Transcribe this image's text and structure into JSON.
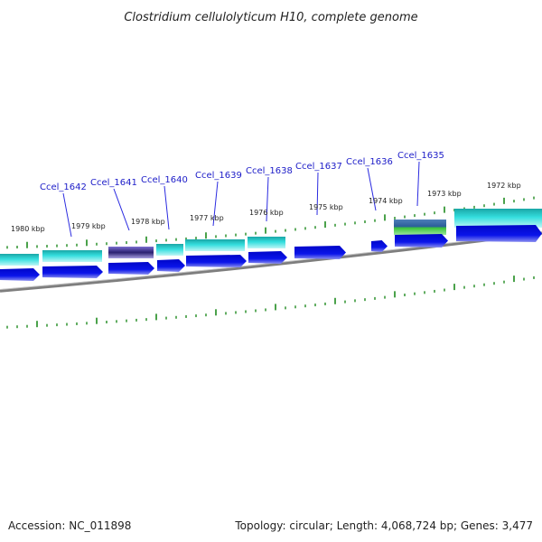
{
  "header": {
    "title": "Clostridium cellulolyticum H10, complete genome"
  },
  "footer": {
    "accession": "Accession: NC_011898",
    "summary": "Topology: circular; Length: 4,068,724 bp; Genes: 3,477"
  },
  "ruler": {
    "labels": [
      "1980 kbp",
      "1979 kbp",
      "1978 kbp",
      "1977 kbp",
      "1976 kbp",
      "1975 kbp",
      "1974 kbp",
      "1973 kbp",
      "1972 kbp"
    ]
  },
  "genes": [
    {
      "label": "Ccel_1642"
    },
    {
      "label": "Ccel_1641"
    },
    {
      "label": "Ccel_1640"
    },
    {
      "label": "Ccel_1639"
    },
    {
      "label": "Ccel_1638"
    },
    {
      "label": "Ccel_1637"
    },
    {
      "label": "Ccel_1636"
    },
    {
      "label": "Ccel_1635"
    }
  ],
  "colors": {
    "tick": "#1e8a1e",
    "backbone": "#8a8a8a",
    "cds": "#0a14e6",
    "gene_teal": "#2fcfcf",
    "gene_purple": "#4a3a9a",
    "gene_green": "#3cc43c",
    "gene_label": "#1c1cc8",
    "leader": "#2a2ae0"
  }
}
